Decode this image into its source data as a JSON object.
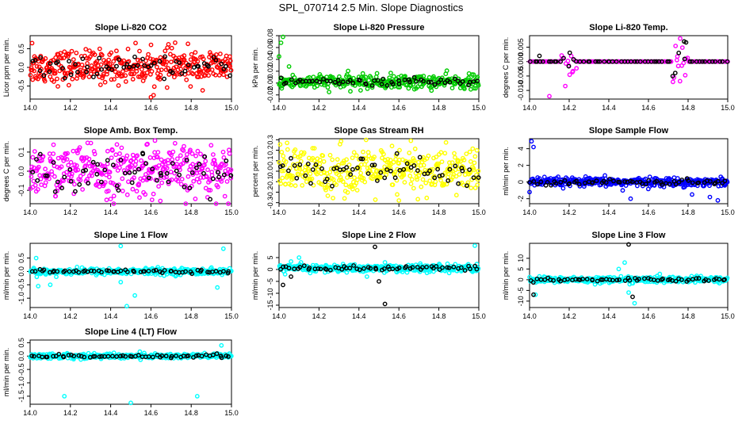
{
  "page_title": "SPL_070714  2.5 Min. Slope Diagnostics",
  "colors": {
    "black": "#000000",
    "red": "#ff0000",
    "green": "#00cc00",
    "magenta": "#ff00ff",
    "yellow": "#ffff00",
    "blue": "#0000ff",
    "cyan": "#00ffff"
  },
  "chart_data": [
    {
      "type": "scatter",
      "title": "Slope Li-820 CO2",
      "xlabel": "",
      "ylabel": "Licor ppm per min.",
      "xlim": [
        14.0,
        15.0
      ],
      "ylim": [
        -0.85,
        0.85
      ],
      "x_ticks": [
        "14.0",
        "14.2",
        "14.4",
        "14.6",
        "14.8",
        "15.0"
      ],
      "y_ticks": [
        -0.5,
        0.0,
        0.5
      ],
      "y_tick_labels": [
        "-0.5",
        "0.0",
        "0.5"
      ],
      "series": [
        {
          "color": "red",
          "center": 0.02,
          "spread": 0.22,
          "n": 380,
          "outliers": [
            [
              14.01,
              0.65
            ],
            [
              14.72,
              0.66
            ],
            [
              14.6,
              -0.8
            ]
          ]
        },
        {
          "color": "black",
          "center": 0.0,
          "spread": 0.12,
          "n": 60,
          "outliers": []
        }
      ]
    },
    {
      "type": "scatter",
      "title": "Slope Li-820 Pressure",
      "xlabel": "",
      "ylabel": "kPa per min.",
      "xlim": [
        14.0,
        15.0
      ],
      "ylim": [
        -0.027,
        0.08
      ],
      "x_ticks": [
        "14.0",
        "14.2",
        "14.4",
        "14.6",
        "14.8",
        "15.0"
      ],
      "y_ticks": [
        -0.02,
        0.0,
        0.02,
        0.04,
        0.06,
        0.08
      ],
      "y_tick_labels": [
        "-0.02",
        "0.00",
        "0.02",
        "0.04",
        "0.06",
        "0.08"
      ],
      "series": [
        {
          "color": "green",
          "center": 0.002,
          "spread": 0.006,
          "n": 330,
          "outliers": [
            [
              14.01,
              0.068
            ],
            [
              14.02,
              0.078
            ],
            [
              14.0,
              0.045
            ],
            [
              14.05,
              0.028
            ]
          ]
        },
        {
          "color": "black",
          "center": 0.002,
          "spread": 0.003,
          "n": 60,
          "outliers": []
        }
      ]
    },
    {
      "type": "scatter",
      "title": "Slope Li-820 Temp.",
      "xlabel": "",
      "ylabel": "degrees C per min.",
      "xlim": [
        14.0,
        15.0
      ],
      "ylim": [
        -0.013,
        0.009
      ],
      "x_ticks": [
        "14.0",
        "14.2",
        "14.4",
        "14.6",
        "14.8",
        "15.0"
      ],
      "y_ticks": [
        -0.01,
        -0.005,
        0.0,
        0.005
      ],
      "y_tick_labels": [
        "-0.010",
        "-0.005",
        "0.000",
        "0.005"
      ],
      "series": [
        {
          "color": "magenta",
          "center": 0.0,
          "spread": 0.0,
          "n": 160,
          "burst": [
            [
              14.16,
              14.24,
              0.004
            ],
            [
              14.72,
              14.8,
              0.005
            ]
          ],
          "outliers": [
            [
              14.1,
              -0.012
            ],
            [
              14.76,
              0.008
            ]
          ]
        },
        {
          "color": "black",
          "center": 0.0,
          "spread": 0.0,
          "n": 60,
          "burst": [
            [
              14.16,
              14.24,
              0.002
            ],
            [
              14.72,
              14.8,
              0.003
            ]
          ],
          "outliers": [
            [
              14.78,
              0.007
            ],
            [
              14.05,
              0.002
            ]
          ]
        }
      ]
    },
    {
      "type": "scatter",
      "title": "Slope Amb. Box Temp.",
      "xlabel": "",
      "ylabel": "degrees C per min.",
      "xlim": [
        14.0,
        15.0
      ],
      "ylim": [
        -0.17,
        0.17
      ],
      "x_ticks": [
        "14.0",
        "14.2",
        "14.4",
        "14.6",
        "14.8",
        "15.0"
      ],
      "y_ticks": [
        -0.1,
        0.0,
        0.1
      ],
      "y_tick_labels": [
        "-0.1",
        "0.0",
        "0.1"
      ],
      "series": [
        {
          "color": "magenta",
          "center": 0.0,
          "spread": 0.065,
          "n": 380,
          "outliers": [
            [
              14.62,
              0.16
            ],
            [
              14.38,
              -0.15
            ]
          ]
        },
        {
          "color": "black",
          "center": 0.0,
          "spread": 0.05,
          "n": 60,
          "outliers": [
            [
              14.56,
              0.09
            ]
          ]
        }
      ]
    },
    {
      "type": "scatter",
      "title": "Slope Gas Stream RH",
      "xlabel": "",
      "ylabel": "percent per min.",
      "xlim": [
        14.0,
        15.0
      ],
      "ylim": [
        -0.31,
        0.31
      ],
      "x_ticks": [
        "14.0",
        "14.2",
        "14.4",
        "14.6",
        "14.8",
        "15.0"
      ],
      "y_ticks": [
        -0.3,
        -0.2,
        -0.1,
        0.0,
        0.1,
        0.2,
        0.3
      ],
      "y_tick_labels": [
        "-0.3",
        "-0.2",
        "-0.1",
        "0.0",
        "0.1",
        "0.2",
        "0.3"
      ],
      "series": [
        {
          "color": "yellow",
          "center": 0.0,
          "spread": 0.11,
          "n": 380,
          "outliers": [
            [
              14.66,
              0.29
            ],
            [
              14.04,
              0.27
            ],
            [
              14.6,
              -0.28
            ]
          ]
        },
        {
          "color": "black",
          "center": 0.0,
          "spread": 0.08,
          "n": 60,
          "outliers": []
        }
      ]
    },
    {
      "type": "scatter",
      "title": "Slope Sample Flow",
      "xlabel": "",
      "ylabel": "ml/min per min.",
      "xlim": [
        14.0,
        15.0
      ],
      "ylim": [
        -2.6,
        5.2
      ],
      "x_ticks": [
        "14.0",
        "14.2",
        "14.4",
        "14.6",
        "14.8",
        "15.0"
      ],
      "y_ticks": [
        -2,
        0,
        2,
        4
      ],
      "y_tick_labels": [
        "-2",
        "0",
        "2",
        "4"
      ],
      "series": [
        {
          "color": "blue",
          "center": 0.0,
          "spread": 0.25,
          "n": 380,
          "outliers": [
            [
              14.01,
              4.9
            ],
            [
              14.02,
              4.2
            ],
            [
              14.0,
              -1.2
            ],
            [
              14.91,
              -1.8
            ],
            [
              14.95,
              -2.2
            ],
            [
              14.82,
              -1.5
            ],
            [
              14.51,
              -2.0
            ],
            [
              14.47,
              -1.0
            ]
          ]
        },
        {
          "color": "black",
          "center": 0.0,
          "spread": 0.15,
          "n": 60,
          "outliers": []
        }
      ]
    },
    {
      "type": "scatter",
      "title": "Slope Line 1 Flow",
      "xlabel": "",
      "ylabel": "ml/min per min.",
      "xlim": [
        14.0,
        15.0
      ],
      "ylim": [
        -1.35,
        1.05
      ],
      "x_ticks": [
        "14.0",
        "14.2",
        "14.4",
        "14.6",
        "14.8",
        "15.0"
      ],
      "y_ticks": [
        -1.0,
        -0.5,
        0.0,
        0.5
      ],
      "y_tick_labels": [
        "-1.0",
        "-0.5",
        "0.0",
        "0.5"
      ],
      "series": [
        {
          "color": "cyan",
          "center": 0.0,
          "spread": 0.06,
          "n": 340,
          "outliers": [
            [
              14.45,
              0.95
            ],
            [
              14.48,
              -1.3
            ],
            [
              14.03,
              0.5
            ],
            [
              14.13,
              -0.2
            ],
            [
              14.04,
              -0.55
            ],
            [
              14.1,
              -0.5
            ],
            [
              14.45,
              -0.4
            ],
            [
              14.52,
              -0.9
            ],
            [
              14.96,
              0.85
            ],
            [
              14.93,
              -0.6
            ]
          ]
        },
        {
          "color": "black",
          "center": 0.0,
          "spread": 0.03,
          "n": 60,
          "outliers": []
        }
      ]
    },
    {
      "type": "scatter",
      "title": "Slope Line 2 Flow",
      "xlabel": "",
      "ylabel": "ml/min per min.",
      "xlim": [
        14.0,
        15.0
      ],
      "ylim": [
        -16,
        11
      ],
      "x_ticks": [
        "14.0",
        "14.2",
        "14.4",
        "14.6",
        "14.8",
        "15.0"
      ],
      "y_ticks": [
        -15,
        -10,
        -5,
        0,
        5
      ],
      "y_tick_labels": [
        "-15",
        "-10",
        "-5",
        "0",
        "5"
      ],
      "series": [
        {
          "color": "cyan",
          "center": 0.5,
          "spread": 0.8,
          "n": 360,
          "outliers": [
            [
              14.1,
              5.0
            ],
            [
              14.44,
              -3.0
            ],
            [
              14.53,
              3.0
            ],
            [
              14.98,
              10.0
            ],
            [
              14.03,
              -2.0
            ],
            [
              14.11,
              3.0
            ]
          ]
        },
        {
          "color": "black",
          "center": 0.5,
          "spread": 0.5,
          "n": 60,
          "outliers": [
            [
              14.48,
              9.5
            ],
            [
              14.5,
              -5.0
            ],
            [
              14.53,
              -14.5
            ],
            [
              14.02,
              -6.5
            ],
            [
              14.06,
              -3.0
            ]
          ]
        }
      ]
    },
    {
      "type": "scatter",
      "title": "Slope Line 3 Flow",
      "xlabel": "",
      "ylabel": "ml/min per min.",
      "xlim": [
        14.0,
        15.0
      ],
      "ylim": [
        -13,
        17
      ],
      "x_ticks": [
        "14.0",
        "14.2",
        "14.4",
        "14.6",
        "14.8",
        "15.0"
      ],
      "y_ticks": [
        -10,
        -5,
        0,
        5,
        10
      ],
      "y_tick_labels": [
        "-10",
        "-5",
        "0",
        "5",
        "10"
      ],
      "series": [
        {
          "color": "cyan",
          "center": 0.0,
          "spread": 0.7,
          "n": 360,
          "outliers": [
            [
              14.48,
              8.0
            ],
            [
              14.45,
              5.0
            ],
            [
              14.5,
              -6.0
            ],
            [
              14.53,
              -11.0
            ],
            [
              14.03,
              -7.0
            ]
          ]
        },
        {
          "color": "black",
          "center": 0.0,
          "spread": 0.4,
          "n": 60,
          "outliers": [
            [
              14.5,
              16.5
            ],
            [
              14.52,
              -8.0
            ],
            [
              14.02,
              -7.0
            ]
          ]
        }
      ]
    },
    {
      "type": "scatter",
      "title": "Slope Line 4 (LT) Flow",
      "xlabel": "",
      "ylabel": "ml/min per min.",
      "xlim": [
        14.0,
        15.0
      ],
      "ylim": [
        -1.8,
        0.6
      ],
      "x_ticks": [
        "14.0",
        "14.2",
        "14.4",
        "14.6",
        "14.8",
        "15.0"
      ],
      "y_ticks": [
        -1.5,
        -1.0,
        -0.5,
        0.0,
        0.5
      ],
      "y_tick_labels": [
        "-1.5",
        "-1.0",
        "-0.5",
        "0.0",
        "0.5"
      ],
      "series": [
        {
          "color": "cyan",
          "center": 0.0,
          "spread": 0.05,
          "n": 340,
          "outliers": [
            [
              14.17,
              -1.5
            ],
            [
              14.83,
              -1.5
            ],
            [
              14.5,
              -1.75
            ],
            [
              14.95,
              0.4
            ]
          ]
        },
        {
          "color": "black",
          "center": 0.0,
          "spread": 0.03,
          "n": 60,
          "outliers": []
        }
      ]
    }
  ]
}
